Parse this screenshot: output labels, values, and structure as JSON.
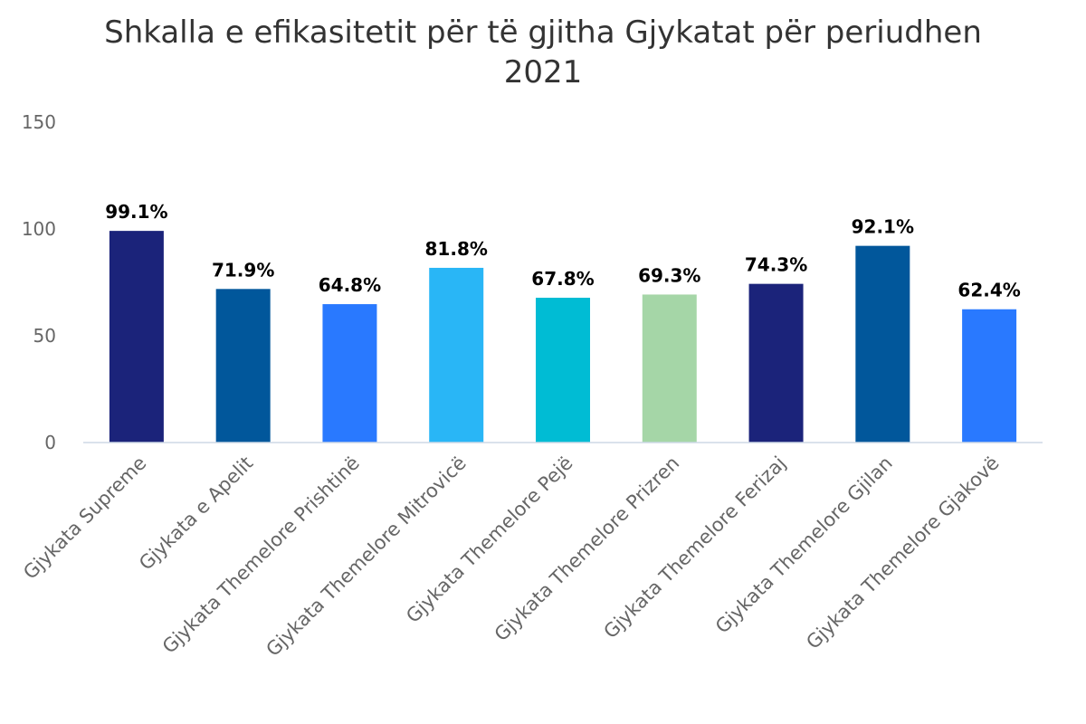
{
  "chart_data": {
    "type": "bar",
    "title": "Shkalla e efikasitetit për të gjitha Gjykatat për periudhen 2021",
    "xlabel": "",
    "ylabel": "",
    "ylim": [
      0,
      150
    ],
    "yticks": [
      0,
      50,
      100,
      150
    ],
    "grid": false,
    "categories": [
      "Gjykata Supreme",
      "Gjykata e Apelit",
      "Gjykata Themelore Prishtinë",
      "Gjykata Themelore Mitrovicë",
      "Gjykata Themelore Pejë",
      "Gjykata Themelore Prizren",
      "Gjykata Themelore Ferizaj",
      "Gjykata Themelore Gjilan",
      "Gjykata Themelore Gjakovë"
    ],
    "values": [
      99.1,
      71.9,
      64.8,
      81.8,
      67.8,
      69.3,
      74.3,
      92.1,
      62.4
    ],
    "data_labels": [
      "99.1%",
      "71.9%",
      "64.8%",
      "81.8%",
      "67.8%",
      "69.3%",
      "74.3%",
      "92.1%",
      "62.4%"
    ],
    "colors": [
      "#1b237a",
      "#01579b",
      "#2979ff",
      "#29b6f6",
      "#00bcd4",
      "#a5d6a7",
      "#1b237a",
      "#01579b",
      "#2979ff"
    ],
    "axis_color": "#cdd8e6"
  }
}
